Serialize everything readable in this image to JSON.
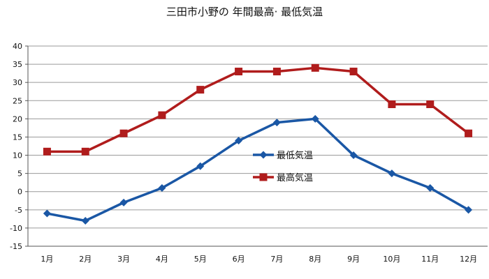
{
  "chart_data": {
    "type": "line",
    "title": "三田市小野の 年間最高· 最低気温",
    "categories": [
      "1月",
      "2月",
      "3月",
      "4月",
      "5月",
      "6月",
      "7月",
      "8月",
      "9月",
      "10月",
      "11月",
      "12月"
    ],
    "series": [
      {
        "name": "最低気温",
        "color": "#1a57a5",
        "marker": "diamond",
        "values": [
          -6,
          -8,
          -3,
          1,
          7,
          14,
          19,
          20,
          10,
          5,
          1,
          -5
        ]
      },
      {
        "name": "最高気温",
        "color": "#b01c1c",
        "marker": "square",
        "values": [
          11,
          11,
          16,
          21,
          28,
          33,
          33,
          34,
          33,
          24,
          24,
          16
        ]
      }
    ],
    "ylim": [
      -15,
      40
    ],
    "yticks": [
      40,
      35,
      30,
      25,
      20,
      15,
      10,
      5,
      0,
      -5,
      -10,
      -15
    ],
    "grid": true,
    "legend": "center"
  }
}
